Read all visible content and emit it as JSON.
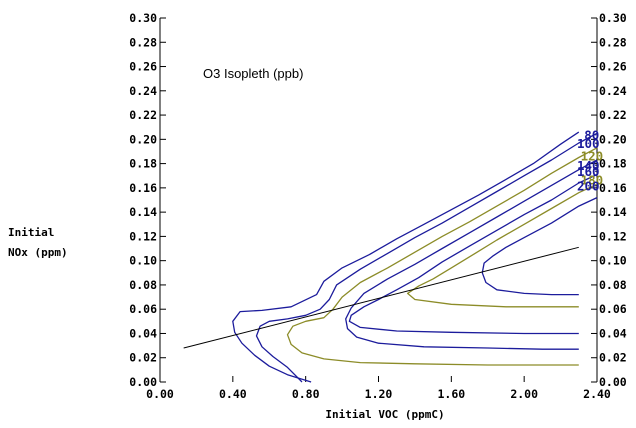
{
  "chart_data": {
    "type": "line",
    "title": "O3 Isopleth (ppb)",
    "xlabel": "Initial VOC (ppmC)",
    "ylabel_lines": [
      "Initial",
      "NOx (ppm)"
    ],
    "xlim": [
      0.0,
      2.4
    ],
    "ylim": [
      0.0,
      0.3
    ],
    "x_ticks": [
      "0.00",
      "0.40",
      "0.80",
      "1.20",
      "1.60",
      "2.00",
      "2.40"
    ],
    "y_ticks": [
      "0.00",
      "0.02",
      "0.04",
      "0.06",
      "0.08",
      "0.10",
      "0.12",
      "0.14",
      "0.16",
      "0.18",
      "0.20",
      "0.22",
      "0.24",
      "0.26",
      "0.28",
      "0.30"
    ],
    "grid": false,
    "right_axis_labels": true,
    "colors": {
      "blue": "#1c1c9c",
      "olive": "#8c8c28",
      "black": "#000000"
    },
    "contour_labels": [
      {
        "text": "80",
        "x": 2.33,
        "y": 0.203,
        "color": "#1c1c9c"
      },
      {
        "text": "100",
        "x": 2.29,
        "y": 0.196,
        "color": "#1c1c9c"
      },
      {
        "text": "120",
        "x": 2.31,
        "y": 0.186,
        "color": "#8c8c28"
      },
      {
        "text": "140",
        "x": 2.29,
        "y": 0.178,
        "color": "#1c1c9c"
      },
      {
        "text": "160",
        "x": 2.29,
        "y": 0.173,
        "color": "#1c1c9c"
      },
      {
        "text": "180",
        "x": 2.31,
        "y": 0.166,
        "color": "#8c8c28"
      },
      {
        "text": "200",
        "x": 2.29,
        "y": 0.161,
        "color": "#1c1c9c"
      }
    ],
    "series": [
      {
        "level": "80",
        "color": "#1c1c9c",
        "x": [
          0.83,
          0.7,
          0.6,
          0.52,
          0.45,
          0.41,
          0.4,
          0.44,
          0.56,
          0.72,
          0.86,
          0.9,
          1.0,
          1.15,
          1.3,
          1.45,
          1.6,
          1.75,
          1.9,
          2.05,
          2.2,
          2.3
        ],
        "y": [
          0.0,
          0.006,
          0.013,
          0.022,
          0.032,
          0.041,
          0.05,
          0.058,
          0.059,
          0.062,
          0.072,
          0.083,
          0.094,
          0.105,
          0.118,
          0.13,
          0.142,
          0.154,
          0.167,
          0.18,
          0.196,
          0.206
        ]
      },
      {
        "level": "100",
        "color": "#1c1c9c",
        "x": [
          2.4,
          2.3,
          2.15,
          2.0,
          1.85,
          1.7,
          1.55,
          1.4,
          1.25,
          1.1,
          0.97,
          0.93,
          0.88,
          0.8,
          0.7,
          0.6,
          0.55,
          0.53,
          0.56,
          0.62,
          0.7,
          0.78
        ],
        "y": [
          0.205,
          0.197,
          0.183,
          0.17,
          0.157,
          0.144,
          0.131,
          0.119,
          0.106,
          0.093,
          0.08,
          0.068,
          0.06,
          0.055,
          0.052,
          0.05,
          0.046,
          0.038,
          0.029,
          0.021,
          0.012,
          0.0
        ]
      },
      {
        "level": "120",
        "color": "#8c8c28",
        "x": [
          2.4,
          2.3,
          2.15,
          2.0,
          1.85,
          1.7,
          1.55,
          1.4,
          1.25,
          1.1,
          1.0,
          0.95,
          0.9,
          0.8,
          0.73,
          0.7,
          0.72,
          0.78,
          0.9,
          1.1,
          1.4,
          1.8,
          2.1,
          2.3
        ],
        "y": [
          0.193,
          0.185,
          0.172,
          0.158,
          0.145,
          0.132,
          0.12,
          0.107,
          0.094,
          0.082,
          0.07,
          0.06,
          0.053,
          0.05,
          0.046,
          0.039,
          0.031,
          0.024,
          0.019,
          0.016,
          0.015,
          0.014,
          0.014,
          0.014
        ]
      },
      {
        "level": "140",
        "color": "#1c1c9c",
        "x": [
          2.4,
          2.3,
          2.15,
          2.0,
          1.85,
          1.7,
          1.55,
          1.4,
          1.25,
          1.12,
          1.05,
          1.02,
          1.03,
          1.08,
          1.2,
          1.45,
          1.8,
          2.1,
          2.3
        ],
        "y": [
          0.183,
          0.175,
          0.162,
          0.149,
          0.136,
          0.123,
          0.11,
          0.097,
          0.085,
          0.073,
          0.061,
          0.052,
          0.044,
          0.037,
          0.032,
          0.029,
          0.028,
          0.027,
          0.027
        ]
      },
      {
        "level": "160",
        "color": "#1c1c9c",
        "x": [
          2.4,
          2.3,
          2.15,
          2.0,
          1.85,
          1.7,
          1.55,
          1.42,
          1.3,
          1.2,
          1.12,
          1.05,
          1.04,
          1.1,
          1.3,
          1.6,
          2.0,
          2.3
        ],
        "y": [
          0.171,
          0.164,
          0.15,
          0.138,
          0.125,
          0.112,
          0.099,
          0.086,
          0.076,
          0.068,
          0.062,
          0.055,
          0.05,
          0.045,
          0.042,
          0.041,
          0.04,
          0.04
        ]
      },
      {
        "level": "180",
        "color": "#8c8c28",
        "x": [
          2.4,
          2.3,
          2.15,
          2.0,
          1.85,
          1.72,
          1.6,
          1.5,
          1.42,
          1.36,
          1.4,
          1.6,
          1.9,
          2.3
        ],
        "y": [
          0.163,
          0.156,
          0.143,
          0.13,
          0.117,
          0.105,
          0.094,
          0.085,
          0.079,
          0.073,
          0.068,
          0.064,
          0.062,
          0.062
        ]
      },
      {
        "level": "200",
        "color": "#1c1c9c",
        "x": [
          2.4,
          2.3,
          2.15,
          2.0,
          1.9,
          1.83,
          1.78,
          1.77,
          1.79,
          1.85,
          2.0,
          2.15,
          2.3
        ],
        "y": [
          0.152,
          0.145,
          0.131,
          0.119,
          0.111,
          0.104,
          0.098,
          0.09,
          0.082,
          0.076,
          0.073,
          0.072,
          0.072
        ]
      }
    ],
    "ridge_line": {
      "x": [
        0.13,
        2.3
      ],
      "y": [
        0.028,
        0.111
      ],
      "color": "#000000"
    }
  }
}
